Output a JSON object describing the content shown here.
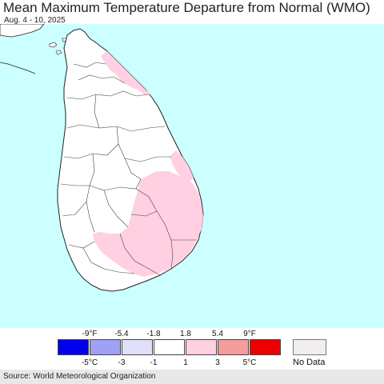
{
  "header": {
    "title": "Mean Maximum Temperature Departure from Normal (WMO)",
    "subtitle": "Aug. 4 - 10, 2025"
  },
  "legend": {
    "fahrenheit_ticks": [
      "-9°F",
      "-5.4",
      "-1.8",
      "1.8",
      "5.4",
      "9°F"
    ],
    "celsius_ticks": [
      "-5°C",
      "-3",
      "-1",
      "1",
      "3",
      "5°C"
    ],
    "colors": [
      "#0000ee",
      "#a0a0f5",
      "#e0e0fa",
      "#ffffff",
      "#ffd0e2",
      "#f59c9c",
      "#ee0000"
    ],
    "no_data_label": "No Data",
    "no_data_color": "#f3eeee"
  },
  "map": {
    "ocean_color": "#ccffff",
    "land_color": "#ffffff",
    "warm_anomaly_color": "#ffd0e2",
    "region": "Sri Lanka"
  },
  "footer": {
    "source": "Source: World Meteorological Organization"
  }
}
